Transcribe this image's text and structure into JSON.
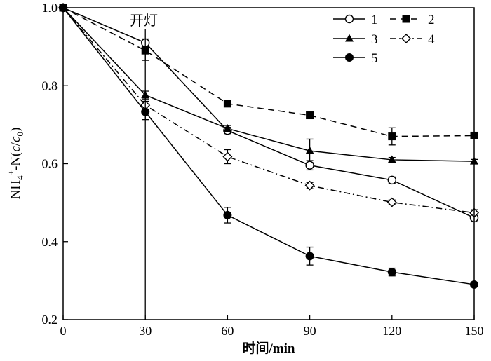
{
  "chart_data": {
    "type": "line",
    "xlabel": "时间/min",
    "ylabel_parts": {
      "main": "NH",
      "sub1": "4",
      "sup": "+",
      "rest": "-N(",
      "c1": "c",
      "slash": "/",
      "c2": "c",
      "sub2": "0",
      "close": ")"
    },
    "xlim": [
      0,
      150
    ],
    "ylim": [
      0.2,
      1.0
    ],
    "xticks": [
      0,
      30,
      60,
      90,
      120,
      150
    ],
    "yticks": [
      0.2,
      0.4,
      0.6,
      0.8,
      1.0
    ],
    "ytick_labels": [
      "0.2",
      "0.4",
      "0.6",
      "0.8",
      "1.0"
    ],
    "annotation": {
      "text": "开灯",
      "x": 30
    },
    "x": [
      0,
      30,
      60,
      90,
      120,
      150
    ],
    "series": [
      {
        "name": "1",
        "marker": "open-circle",
        "dash": "solid",
        "values": [
          1.0,
          0.91,
          0.685,
          0.596,
          0.558,
          0.461
        ],
        "errors": [
          0,
          0.01,
          0.008,
          0.012,
          0.008,
          0.01
        ]
      },
      {
        "name": "2",
        "marker": "filled-square",
        "dash": "dashed",
        "values": [
          1.0,
          0.89,
          0.754,
          0.724,
          0.67,
          0.672
        ],
        "errors": [
          0,
          0.025,
          0.006,
          0.008,
          0.022,
          0.006
        ]
      },
      {
        "name": "3",
        "marker": "filled-triangle",
        "dash": "solid",
        "values": [
          1.0,
          0.776,
          0.69,
          0.633,
          0.61,
          0.606
        ],
        "errors": [
          0,
          0.01,
          0.008,
          0.03,
          0.006,
          0.005
        ]
      },
      {
        "name": "4",
        "marker": "open-diamond",
        "dash": "dashdot",
        "values": [
          1.0,
          0.75,
          0.618,
          0.544,
          0.501,
          0.474
        ],
        "errors": [
          0,
          0.01,
          0.018,
          0.008,
          0.006,
          0.008
        ]
      },
      {
        "name": "5",
        "marker": "filled-circle",
        "dash": "solid",
        "values": [
          1.0,
          0.733,
          0.468,
          0.363,
          0.322,
          0.29
        ],
        "errors": [
          0,
          0.02,
          0.02,
          0.023,
          0.01,
          0.005
        ]
      }
    ],
    "grid": false,
    "legend_position": "top-right"
  }
}
